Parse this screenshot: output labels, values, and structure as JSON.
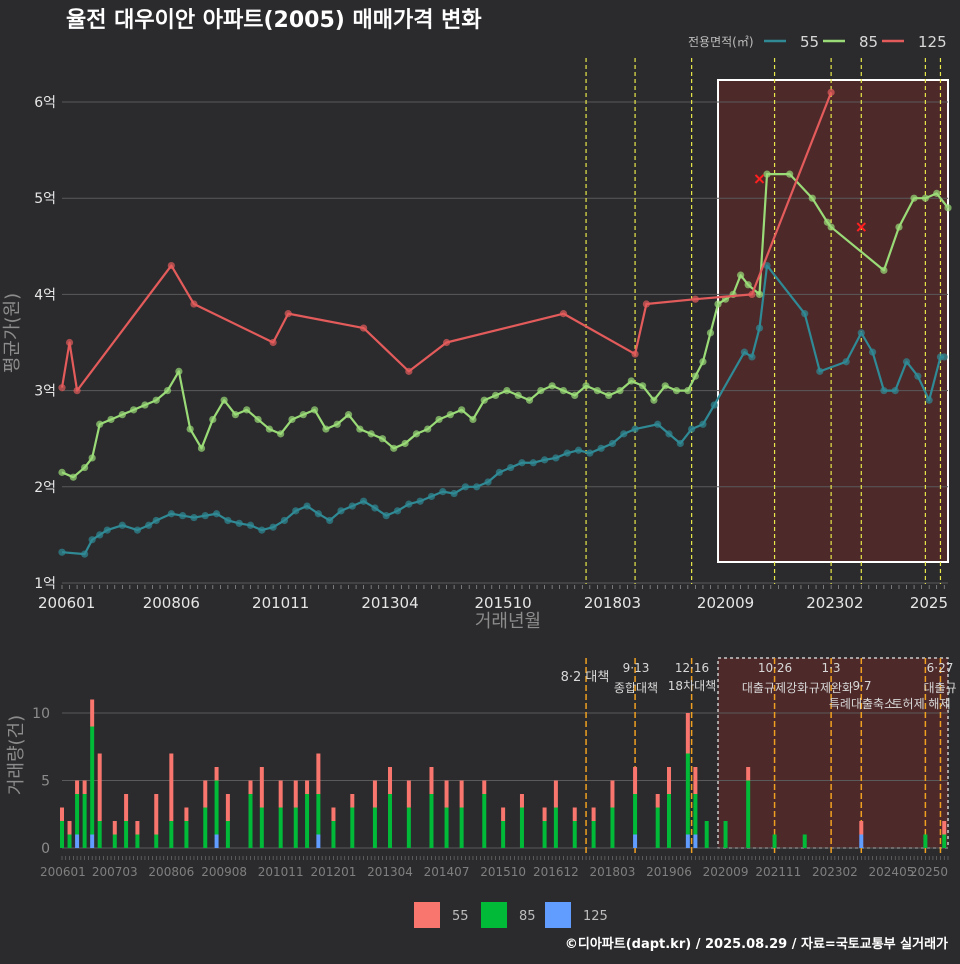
{
  "title": "율전 대우이안 아파트(2005) 매매가격 변화",
  "footer": "©디아파트(dapt.kr) / 2025.08.29 / 자료=국토교통부 실거래가",
  "colors": {
    "background": "#2b2b2d",
    "grid": "#5a5a5a",
    "s55": "#2f8a95",
    "s85": "#9adb78",
    "s125": "#e35b5b",
    "bar55": "#f8766d",
    "bar85": "#00ba38",
    "bar125": "#619cff",
    "policy_line": "#e8e84a",
    "policy_line_bottom": "#f0a020",
    "highlight_fill": "#5a2a2a",
    "marker_x": "#ff2020"
  },
  "top_chart": {
    "legend_title": "전용면적(㎡)",
    "legend_items": [
      "55",
      "85",
      "125"
    ],
    "y_axis_title": "평균가(원)",
    "x_axis_title": "거래년월",
    "y_ticks": [
      "1억",
      "2억",
      "3억",
      "4억",
      "5억",
      "6억"
    ],
    "x_ticks": [
      "200601",
      "200806",
      "201011",
      "201304",
      "201510",
      "201803",
      "202009",
      "202302",
      "2025"
    ]
  },
  "bottom_chart": {
    "y_axis_title": "거래량(건)",
    "y_ticks": [
      "0",
      "5",
      "10"
    ],
    "x_ticks": [
      "200601",
      "200703",
      "200806",
      "200908",
      "201011",
      "201201",
      "201304",
      "201407",
      "201510",
      "201612",
      "201803",
      "201906",
      "202009",
      "202111",
      "202302",
      "202405",
      "20250"
    ],
    "policy_labels": [
      {
        "date": "8·2",
        "name": "대책"
      },
      {
        "date": "9·13",
        "name": "종합대책"
      },
      {
        "date": "12·16",
        "name": "18차대책"
      },
      {
        "date": "10·26",
        "name": "대출규제강화"
      },
      {
        "date": "1·3",
        "name": "규제완화"
      },
      {
        "date": "9·7",
        "name": "특례대출축소"
      },
      {
        "date": "",
        "name": "토허제 해제"
      },
      {
        "date": "6·27",
        "name": "대출규"
      }
    ],
    "legend_items": [
      "55",
      "85",
      "125"
    ]
  },
  "chart_data": [
    {
      "type": "line",
      "title": "율전 대우이안 아파트(2005) 매매가격 변화",
      "xlabel": "거래년월",
      "ylabel": "평균가(원)",
      "ylim": [
        1.0,
        6.3
      ],
      "y_unit": "억",
      "xlim": [
        "2006-01",
        "2025-08"
      ],
      "legend_position": "top-right",
      "policy_dates": [
        "2017-08",
        "2018-09",
        "2019-12",
        "2021-10",
        "2023-01",
        "2023-09",
        "2025-02",
        "2025-06"
      ],
      "highlight_range": [
        "2020-07",
        "2025-08"
      ],
      "series": [
        {
          "name": "55",
          "x": [
            "2006-01",
            "2006-07",
            "2006-09",
            "2006-11",
            "2007-01",
            "2007-05",
            "2007-09",
            "2007-12",
            "2008-02",
            "2008-06",
            "2008-09",
            "2008-12",
            "2009-03",
            "2009-06",
            "2009-09",
            "2009-12",
            "2010-03",
            "2010-06",
            "2010-09",
            "2010-12",
            "2011-03",
            "2011-06",
            "2011-09",
            "2011-12",
            "2012-03",
            "2012-06",
            "2012-09",
            "2012-12",
            "2013-03",
            "2013-06",
            "2013-09",
            "2013-12",
            "2014-03",
            "2014-06",
            "2014-09",
            "2014-12",
            "2015-03",
            "2015-06",
            "2015-09",
            "2015-12",
            "2016-03",
            "2016-06",
            "2016-09",
            "2016-12",
            "2017-03",
            "2017-06",
            "2017-09",
            "2017-12",
            "2018-03",
            "2018-06",
            "2018-09",
            "2019-03",
            "2019-06",
            "2019-09",
            "2019-12",
            "2020-03",
            "2020-06",
            "2021-02",
            "2021-04",
            "2021-06",
            "2021-08",
            "2022-06",
            "2022-10",
            "2023-05",
            "2023-09",
            "2023-12",
            "2024-03",
            "2024-06",
            "2024-09",
            "2024-12",
            "2025-03",
            "2025-06",
            "2025-07"
          ],
          "y": [
            1.32,
            1.3,
            1.45,
            1.5,
            1.55,
            1.6,
            1.55,
            1.6,
            1.65,
            1.72,
            1.7,
            1.68,
            1.7,
            1.72,
            1.65,
            1.62,
            1.6,
            1.55,
            1.58,
            1.65,
            1.75,
            1.8,
            1.72,
            1.65,
            1.75,
            1.8,
            1.85,
            1.78,
            1.7,
            1.75,
            1.82,
            1.85,
            1.9,
            1.95,
            1.93,
            2.0,
            2.0,
            2.05,
            2.15,
            2.2,
            2.25,
            2.25,
            2.28,
            2.3,
            2.35,
            2.38,
            2.35,
            2.4,
            2.45,
            2.55,
            2.6,
            2.65,
            2.55,
            2.45,
            2.6,
            2.65,
            2.85,
            3.4,
            3.35,
            3.65,
            4.3,
            3.8,
            3.2,
            3.3,
            3.6,
            3.4,
            3.0,
            3.0,
            3.3,
            3.15,
            2.9,
            3.35,
            3.35
          ]
        },
        {
          "name": "85",
          "x": [
            "2006-01",
            "2006-04",
            "2006-07",
            "2006-09",
            "2006-11",
            "2007-02",
            "2007-05",
            "2007-08",
            "2007-11",
            "2008-02",
            "2008-05",
            "2008-08",
            "2008-11",
            "2009-02",
            "2009-05",
            "2009-08",
            "2009-11",
            "2010-02",
            "2010-05",
            "2010-08",
            "2010-11",
            "2011-02",
            "2011-05",
            "2011-08",
            "2011-11",
            "2012-02",
            "2012-05",
            "2012-08",
            "2012-11",
            "2013-02",
            "2013-05",
            "2013-08",
            "2013-11",
            "2014-02",
            "2014-05",
            "2014-08",
            "2014-11",
            "2015-02",
            "2015-05",
            "2015-08",
            "2015-11",
            "2016-02",
            "2016-05",
            "2016-08",
            "2016-11",
            "2017-02",
            "2017-05",
            "2017-08",
            "2017-11",
            "2018-02",
            "2018-05",
            "2018-08",
            "2018-11",
            "2019-02",
            "2019-05",
            "2019-08",
            "2019-11",
            "2020-01",
            "2020-03",
            "2020-05",
            "2020-07",
            "2020-09",
            "2020-11",
            "2021-01",
            "2021-03",
            "2021-06",
            "2021-08",
            "2022-02",
            "2022-08",
            "2022-12",
            "2023-01",
            "2024-03",
            "2024-07",
            "2024-11",
            "2025-02",
            "2025-05",
            "2025-08"
          ],
          "y": [
            2.15,
            2.1,
            2.2,
            2.3,
            2.65,
            2.7,
            2.75,
            2.8,
            2.85,
            2.9,
            3.0,
            3.2,
            2.6,
            2.4,
            2.7,
            2.9,
            2.75,
            2.8,
            2.7,
            2.6,
            2.55,
            2.7,
            2.75,
            2.8,
            2.6,
            2.65,
            2.75,
            2.6,
            2.55,
            2.5,
            2.4,
            2.45,
            2.55,
            2.6,
            2.7,
            2.75,
            2.8,
            2.7,
            2.9,
            2.95,
            3.0,
            2.95,
            2.9,
            3.0,
            3.05,
            3.0,
            2.95,
            3.05,
            3.0,
            2.95,
            3.0,
            3.1,
            3.05,
            2.9,
            3.05,
            3.0,
            3.0,
            3.15,
            3.3,
            3.6,
            3.9,
            3.95,
            4.0,
            4.2,
            4.1,
            4.0,
            5.25,
            5.25,
            5.0,
            4.75,
            4.7,
            4.25,
            4.7,
            5.0,
            5.0,
            5.05,
            4.9
          ]
        },
        {
          "name": "125",
          "x": [
            "2006-01",
            "2006-03",
            "2006-05",
            "2008-06",
            "2008-12",
            "2010-09",
            "2011-01",
            "2012-09",
            "2013-09",
            "2014-07",
            "2017-02",
            "2018-09",
            "2018-12",
            "2020-01",
            "2021-04",
            "2023-01"
          ],
          "y": [
            3.03,
            3.5,
            3.0,
            4.3,
            3.9,
            3.5,
            3.8,
            3.65,
            3.2,
            3.5,
            3.8,
            3.38,
            3.9,
            3.95,
            4.0,
            6.1
          ]
        }
      ]
    },
    {
      "type": "bar",
      "stacked": true,
      "title": "",
      "xlabel": "",
      "ylabel": "거래량(건)",
      "ylim": [
        0,
        14
      ],
      "x": [
        "2006-01",
        "2006-03",
        "2006-05",
        "2006-07",
        "2006-09",
        "2006-11",
        "2007-03",
        "2007-06",
        "2007-09",
        "2008-02",
        "2008-06",
        "2008-10",
        "2009-03",
        "2009-06",
        "2009-09",
        "2010-03",
        "2010-06",
        "2010-11",
        "2011-03",
        "2011-06",
        "2011-09",
        "2012-01",
        "2012-06",
        "2012-12",
        "2013-04",
        "2013-09",
        "2014-03",
        "2014-07",
        "2014-11",
        "2015-05",
        "2015-10",
        "2016-03",
        "2016-09",
        "2016-12",
        "2017-05",
        "2017-10",
        "2018-03",
        "2018-09",
        "2019-03",
        "2019-06",
        "2019-11",
        "2020-01",
        "2020-04",
        "2020-09",
        "2021-03",
        "2021-10",
        "2022-06",
        "2023-02",
        "2023-09",
        "2024-05",
        "2025-02",
        "2025-07"
      ],
      "series": [
        {
          "name": "55",
          "values": [
            1,
            1,
            1,
            1,
            2,
            5,
            1,
            2,
            1,
            3,
            5,
            1,
            2,
            1,
            2,
            1,
            3,
            2,
            2,
            1,
            3,
            1,
            1,
            2,
            2,
            2,
            2,
            2,
            2,
            1,
            1,
            1,
            1,
            2,
            1,
            1,
            2,
            2,
            1,
            2,
            3,
            2,
            0,
            0,
            1,
            0,
            0,
            0,
            1,
            0,
            0,
            1
          ]
        },
        {
          "name": "85",
          "values": [
            2,
            1,
            3,
            4,
            8,
            2,
            1,
            2,
            1,
            1,
            2,
            2,
            3,
            4,
            2,
            4,
            3,
            3,
            3,
            4,
            3,
            2,
            3,
            3,
            4,
            3,
            4,
            3,
            3,
            4,
            2,
            3,
            2,
            3,
            2,
            2,
            3,
            3,
            3,
            4,
            6,
            3,
            2,
            2,
            5,
            1,
            1,
            0,
            0,
            0,
            1,
            1
          ]
        },
        {
          "name": "125",
          "values": [
            0,
            0,
            1,
            0,
            1,
            0,
            0,
            0,
            0,
            0,
            0,
            0,
            0,
            1,
            0,
            0,
            0,
            0,
            0,
            0,
            1,
            0,
            0,
            0,
            0,
            0,
            0,
            0,
            0,
            0,
            0,
            0,
            0,
            0,
            0,
            0,
            0,
            1,
            0,
            0,
            1,
            1,
            0,
            0,
            0,
            0,
            0,
            0,
            1,
            0,
            0,
            0
          ]
        }
      ]
    }
  ]
}
